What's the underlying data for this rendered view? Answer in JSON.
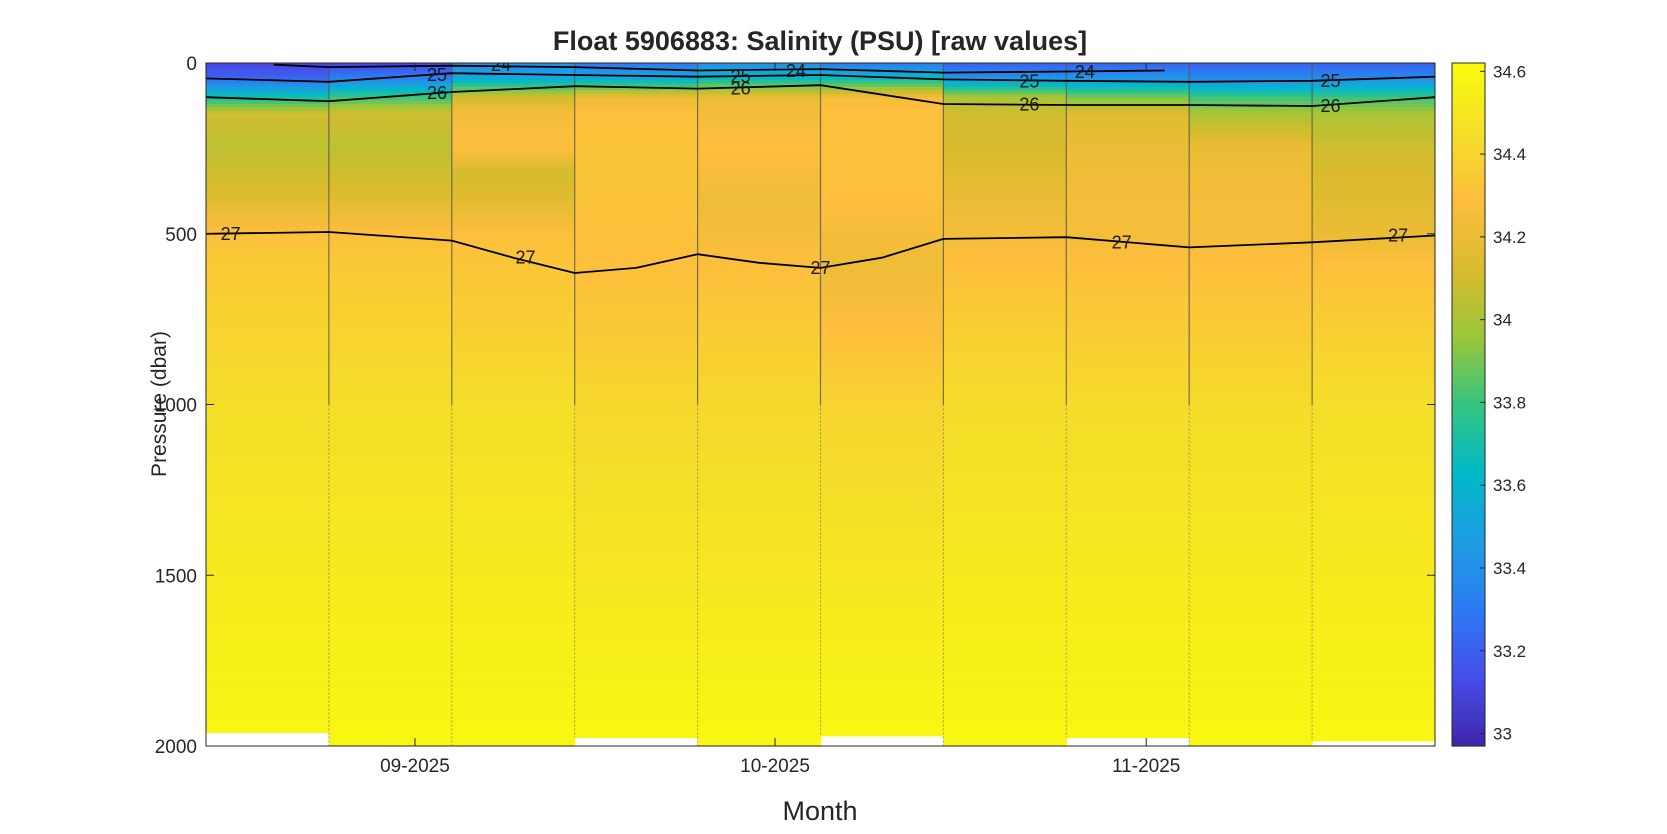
{
  "chart_data": {
    "type": "heatmap",
    "title": "Float 5906883: Salinity (PSU) [raw values]",
    "xlabel": "Month",
    "ylabel": "Pressure (dbar)",
    "xlim": [
      0,
      10
    ],
    "ylim": [
      2000,
      0
    ],
    "yticks": [
      0,
      500,
      1000,
      1500,
      2000
    ],
    "xticks": [
      {
        "label": "09-2025",
        "value": 1.7
      },
      {
        "label": "10-2025",
        "value": 4.63
      },
      {
        "label": "11-2025",
        "value": 7.65
      }
    ],
    "colorbar": {
      "range": [
        32.97,
        34.62
      ],
      "ticks": [
        33,
        33.2,
        33.4,
        33.6,
        33.8,
        34,
        34.2,
        34.4,
        34.6
      ],
      "colormap": "parula"
    },
    "profiles": [
      {
        "x0": 0,
        "x1": 1,
        "max_pressure": 1960,
        "depths": [
          0,
          40,
          100,
          150,
          250,
          400,
          500,
          600,
          800,
          1000,
          1500,
          1900,
          2000
        ],
        "values": [
          33.1,
          33.2,
          33.7,
          34.1,
          34.05,
          34.15,
          34.3,
          34.36,
          34.4,
          34.45,
          34.52,
          34.58,
          34.6
        ]
      },
      {
        "x0": 1,
        "x1": 2,
        "max_pressure": 2000,
        "depths": [
          0,
          40,
          100,
          150,
          250,
          400,
          500,
          600,
          800,
          1000,
          1500,
          1900,
          2000
        ],
        "values": [
          33.1,
          33.3,
          33.8,
          34.1,
          34.05,
          34.15,
          34.3,
          34.35,
          34.4,
          34.45,
          34.52,
          34.58,
          34.6
        ]
      },
      {
        "x0": 2,
        "x1": 3,
        "max_pressure": 2000,
        "depths": [
          0,
          40,
          100,
          150,
          250,
          320,
          400,
          500,
          600,
          800,
          1000,
          1500,
          1900,
          2000
        ],
        "values": [
          33.4,
          33.5,
          34.1,
          34.25,
          34.3,
          34.1,
          34.15,
          34.3,
          34.33,
          34.38,
          34.45,
          34.52,
          34.58,
          34.6
        ]
      },
      {
        "x0": 3,
        "x1": 4,
        "max_pressure": 1975,
        "depths": [
          0,
          40,
          100,
          150,
          250,
          400,
          500,
          600,
          800,
          1000,
          1500,
          1900,
          2000
        ],
        "values": [
          33.3,
          33.5,
          34.2,
          34.3,
          34.32,
          34.32,
          34.3,
          34.3,
          34.35,
          34.42,
          34.5,
          34.58,
          34.6
        ]
      },
      {
        "x0": 4,
        "x1": 5,
        "max_pressure": 2000,
        "depths": [
          0,
          40,
          100,
          150,
          250,
          400,
          500,
          600,
          800,
          1000,
          1500,
          1900,
          2000
        ],
        "values": [
          33.4,
          33.6,
          34.2,
          34.25,
          34.3,
          34.22,
          34.25,
          34.3,
          34.36,
          34.42,
          34.5,
          34.58,
          34.6
        ]
      },
      {
        "x0": 5,
        "x1": 6,
        "max_pressure": 1970,
        "depths": [
          0,
          40,
          100,
          150,
          250,
          400,
          500,
          600,
          800,
          1000,
          1500,
          1900,
          2000
        ],
        "values": [
          33.3,
          33.6,
          34.25,
          34.3,
          34.3,
          34.3,
          34.25,
          34.22,
          34.3,
          34.4,
          34.5,
          34.58,
          34.6
        ]
      },
      {
        "x0": 6,
        "x1": 7,
        "max_pressure": 2000,
        "depths": [
          0,
          40,
          100,
          150,
          250,
          400,
          500,
          600,
          800,
          1000,
          1500,
          1900,
          2000
        ],
        "values": [
          33.2,
          33.4,
          34.0,
          34.1,
          34.12,
          34.2,
          34.25,
          34.3,
          34.38,
          34.44,
          34.52,
          34.58,
          34.6
        ]
      },
      {
        "x0": 7,
        "x1": 8,
        "max_pressure": 1975,
        "depths": [
          0,
          40,
          100,
          150,
          250,
          400,
          500,
          600,
          800,
          1000,
          1500,
          1900,
          2000
        ],
        "values": [
          33.2,
          33.4,
          33.9,
          34.15,
          34.2,
          34.25,
          34.25,
          34.3,
          34.36,
          34.44,
          34.52,
          34.58,
          34.6
        ]
      },
      {
        "x0": 8,
        "x1": 9,
        "max_pressure": 2000,
        "depths": [
          0,
          40,
          100,
          150,
          250,
          400,
          500,
          600,
          800,
          1000,
          1500,
          1900,
          2000
        ],
        "values": [
          33.2,
          33.35,
          33.8,
          34.0,
          34.2,
          34.25,
          34.25,
          34.3,
          34.36,
          34.44,
          34.52,
          34.58,
          34.6
        ]
      },
      {
        "x0": 9,
        "x1": 10,
        "max_pressure": 1985,
        "depths": [
          0,
          40,
          100,
          150,
          250,
          400,
          500,
          600,
          800,
          1000,
          1500,
          1900,
          2000
        ],
        "values": [
          33.2,
          33.35,
          33.8,
          34.0,
          34.1,
          34.15,
          34.2,
          34.3,
          34.38,
          34.45,
          34.52,
          34.58,
          34.6
        ]
      }
    ],
    "contours": [
      {
        "level": 24,
        "x": [
          0.55,
          1.0,
          2.0,
          3.0,
          4.0,
          5.0,
          6.0,
          7.0,
          7.8
        ],
        "y": [
          5,
          12,
          8,
          12,
          22,
          18,
          28,
          25,
          22
        ],
        "labels": [
          {
            "text": "24",
            "x": 2.4,
            "y": 6
          },
          {
            "text": "24",
            "x": 4.8,
            "y": 23
          },
          {
            "text": "24",
            "x": 7.15,
            "y": 27
          }
        ]
      },
      {
        "level": 25,
        "x": [
          0,
          0.5,
          1.0,
          2.0,
          3.0,
          4.0,
          5.0,
          6.0,
          7.0,
          8.0,
          9.0,
          10.0
        ],
        "y": [
          45,
          50,
          55,
          30,
          35,
          40,
          35,
          48,
          52,
          55,
          52,
          40
        ],
        "labels": [
          {
            "text": "25",
            "x": 1.88,
            "y": 35
          },
          {
            "text": "25",
            "x": 4.35,
            "y": 40
          },
          {
            "text": "25",
            "x": 6.7,
            "y": 54
          },
          {
            "text": "25",
            "x": 9.15,
            "y": 52
          }
        ]
      },
      {
        "level": 26,
        "x": [
          0,
          1.0,
          2.0,
          3.0,
          4.0,
          5.0,
          6.0,
          7.0,
          8.0,
          9.0,
          10.0
        ],
        "y": [
          100,
          112,
          85,
          68,
          75,
          65,
          120,
          123,
          123,
          126,
          100
        ],
        "labels": [
          {
            "text": "26",
            "x": 1.88,
            "y": 88
          },
          {
            "text": "26",
            "x": 4.35,
            "y": 74
          },
          {
            "text": "26",
            "x": 6.7,
            "y": 122
          },
          {
            "text": "26",
            "x": 9.15,
            "y": 126
          }
        ]
      },
      {
        "level": 27,
        "x": [
          0,
          1.0,
          2.0,
          2.5,
          3.0,
          3.5,
          4.0,
          4.5,
          5.0,
          5.5,
          6.0,
          7.0,
          8.0,
          9.0,
          10.0
        ],
        "y": [
          500,
          495,
          520,
          570,
          615,
          600,
          560,
          585,
          600,
          570,
          515,
          510,
          540,
          525,
          505
        ],
        "labels": [
          {
            "text": "27",
            "x": 0.2,
            "y": 500
          },
          {
            "text": "27",
            "x": 2.6,
            "y": 570
          },
          {
            "text": "27",
            "x": 5.0,
            "y": 600
          },
          {
            "text": "27",
            "x": 7.45,
            "y": 525
          },
          {
            "text": "27",
            "x": 9.7,
            "y": 505
          }
        ]
      }
    ]
  }
}
